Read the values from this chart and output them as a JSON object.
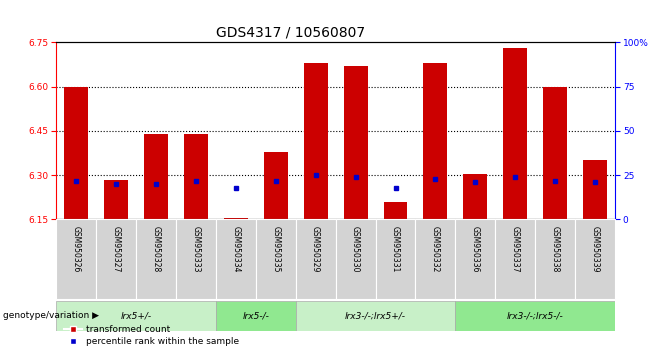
{
  "title": "GDS4317 / 10560807",
  "samples": [
    "GSM950326",
    "GSM950327",
    "GSM950328",
    "GSM950333",
    "GSM950334",
    "GSM950335",
    "GSM950329",
    "GSM950330",
    "GSM950331",
    "GSM950332",
    "GSM950336",
    "GSM950337",
    "GSM950338",
    "GSM950339"
  ],
  "red_values": [
    6.6,
    6.285,
    6.44,
    6.44,
    6.155,
    6.38,
    6.68,
    6.67,
    6.21,
    6.68,
    6.305,
    6.73,
    6.6,
    6.35
  ],
  "blue_values": [
    22,
    20,
    20,
    22,
    18,
    22,
    25,
    24,
    18,
    23,
    21,
    24,
    22,
    21
  ],
  "groups": [
    {
      "label": "lrx5+/-",
      "start": 0,
      "end": 4,
      "color": "#c8f0c8"
    },
    {
      "label": "lrx5-/-",
      "start": 4,
      "end": 6,
      "color": "#90e890"
    },
    {
      "label": "lrx3-/-;lrx5+/-",
      "start": 6,
      "end": 10,
      "color": "#c8f0c8"
    },
    {
      "label": "lrx3-/-;lrx5-/-",
      "start": 10,
      "end": 14,
      "color": "#90e890"
    }
  ],
  "ylim_left": [
    6.15,
    6.75
  ],
  "ylim_right": [
    0,
    100
  ],
  "yticks_left": [
    6.15,
    6.3,
    6.45,
    6.6,
    6.75
  ],
  "yticks_right": [
    0,
    25,
    50,
    75,
    100
  ],
  "base_value": 6.15,
  "bar_color": "#cc0000",
  "dot_color": "#0000cc",
  "legend_red": "transformed count",
  "legend_blue": "percentile rank within the sample",
  "genotype_label": "genotype/variation",
  "title_fontsize": 10,
  "tick_fontsize": 6.5,
  "sample_label_fontsize": 5.5,
  "group_label_fontsize": 6.5,
  "legend_fontsize": 6.5,
  "genotype_fontsize": 6.5
}
